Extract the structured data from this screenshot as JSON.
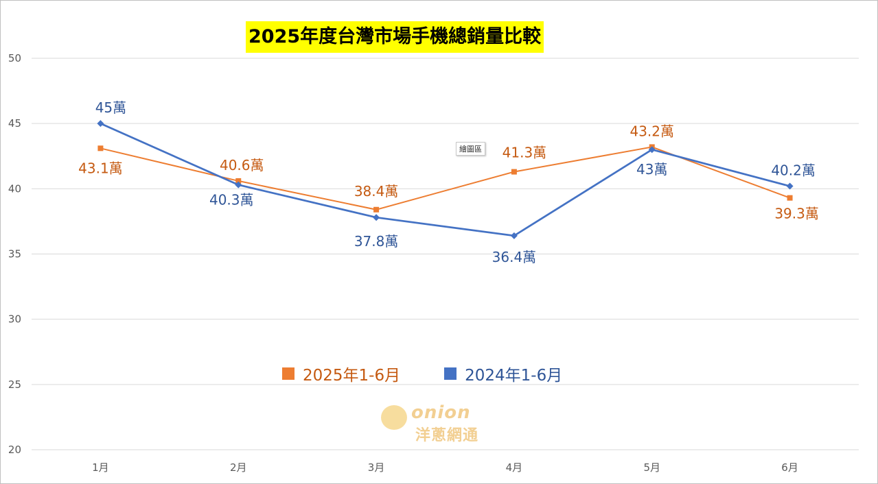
{
  "chart_data": {
    "type": "line",
    "title": "2025年度台灣市場手機總銷量比較",
    "categories": [
      "1月",
      "2月",
      "3月",
      "4月",
      "5月",
      "6月"
    ],
    "ylim": [
      20,
      50
    ],
    "yticks": [
      "20",
      "25",
      "30",
      "35",
      "40",
      "45",
      "50"
    ],
    "grid": true,
    "legend_position": "bottom-center",
    "series": [
      {
        "name": "2025年1-6月",
        "color": "#ed7d31",
        "label_color": "#c55a11",
        "values": [
          43.1,
          40.6,
          38.4,
          41.3,
          43.2,
          39.3
        ],
        "labels": [
          "43.1萬",
          "40.6萬",
          "38.4萬",
          "41.3萬",
          "43.2萬",
          "39.3萬"
        ]
      },
      {
        "name": "2024年1-6月",
        "color": "#4472c4",
        "label_color": "#2f5597",
        "values": [
          45,
          40.3,
          37.8,
          36.4,
          43,
          40.2
        ],
        "labels": [
          "45萬",
          "40.3萬",
          "37.8萬",
          "36.4萬",
          "43萬",
          "40.2萬"
        ]
      }
    ]
  },
  "overlay": {
    "tooltip": "繪圖區"
  },
  "watermark": {
    "line1": "onion",
    "line2": "洋蔥網通"
  }
}
